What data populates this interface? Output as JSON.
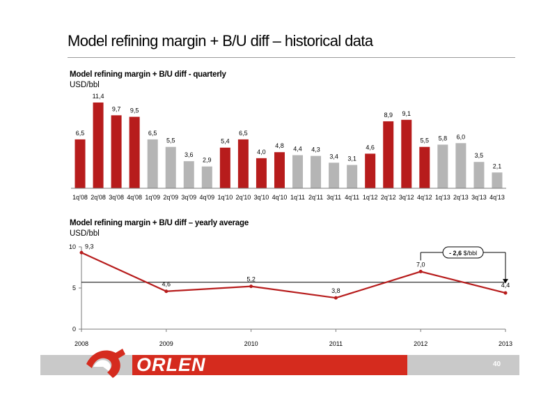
{
  "page": {
    "title": "Model refining margin + B/U diff – historical data",
    "page_number": "40",
    "logo_text": "ORLEN"
  },
  "colors": {
    "red": "#b71c1c",
    "grey": "#b5b5b5",
    "line": "#b71c1c"
  },
  "chart_data": [
    {
      "type": "bar",
      "title": "Model refining margin + B/U diff - quarterly",
      "ylabel": "USD/bbl",
      "categories": [
        "1q'08",
        "2q'08",
        "3q'08",
        "4q'08",
        "1q'09",
        "2q'09",
        "3q'09",
        "4q'09",
        "1q'10",
        "2q'10",
        "3q'10",
        "4q'10",
        "1q'11",
        "2q'11",
        "3q'11",
        "4q'11",
        "1q'12",
        "2q'12",
        "3q'12",
        "4q'12",
        "1q'13",
        "2q'13",
        "3q'13",
        "4q'13"
      ],
      "values": [
        6.5,
        11.4,
        9.7,
        9.5,
        6.5,
        5.5,
        3.6,
        2.9,
        5.4,
        6.5,
        4.0,
        4.8,
        4.4,
        4.3,
        3.4,
        3.1,
        4.6,
        8.9,
        9.1,
        5.5,
        5.8,
        6.0,
        3.5,
        2.1
      ],
      "labels": [
        "6,5",
        "11,4",
        "9,7",
        "9,5",
        "6,5",
        "5,5",
        "3,6",
        "2,9",
        "5,4",
        "6,5",
        "4,0",
        "4,8",
        "4,4",
        "4,3",
        "3,4",
        "3,1",
        "4,6",
        "8,9",
        "9,1",
        "5,5",
        "5,8",
        "6,0",
        "3,5",
        "2,1"
      ],
      "bar_colors": [
        "red",
        "red",
        "red",
        "red",
        "grey",
        "grey",
        "grey",
        "grey",
        "red",
        "red",
        "red",
        "red",
        "grey",
        "grey",
        "grey",
        "grey",
        "red",
        "red",
        "red",
        "red",
        "grey",
        "grey",
        "grey",
        "grey"
      ],
      "ylim": [
        0,
        11.4
      ]
    },
    {
      "type": "line",
      "title": "Model refining margin + B/U diff – yearly average",
      "ylabel": "USD/bbl",
      "x": [
        "2008",
        "2009",
        "2010",
        "2011",
        "2012",
        "2013"
      ],
      "values": [
        9.3,
        4.6,
        5.2,
        3.8,
        7.0,
        4.4
      ],
      "labels": [
        "9,3",
        "4,6",
        "5,2",
        "3,8",
        "7,0",
        "4,4"
      ],
      "ylim": [
        0,
        10
      ],
      "yticks": [
        "0",
        "5",
        "10"
      ],
      "average_line": 5.7,
      "annotation": {
        "value": "- 2,6",
        "unit": "$/bbl"
      }
    }
  ]
}
